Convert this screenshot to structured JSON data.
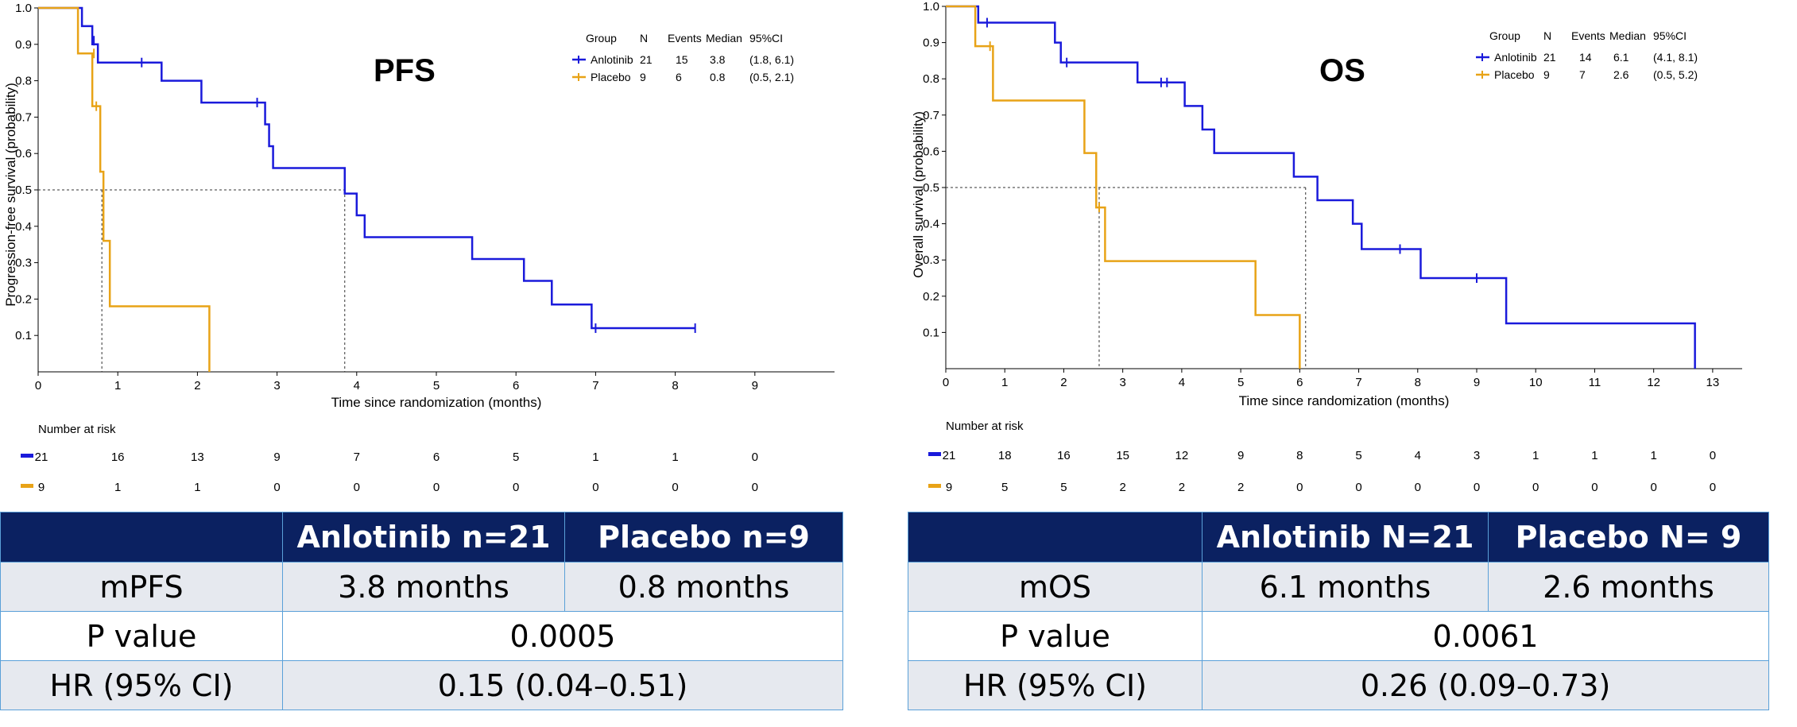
{
  "panels": [
    {
      "id": "pfs",
      "title": "PFS",
      "chart_data": {
        "type": "line",
        "title": "PFS",
        "xlabel": "Time since randomization (months)",
        "ylabel": "Progression-free survival (probability)",
        "xlim": [
          0,
          10
        ],
        "ylim": [
          0,
          1.0
        ],
        "x_ticks": [
          0,
          1,
          2,
          3,
          4,
          5,
          6,
          7,
          8,
          9
        ],
        "y_ticks": [
          0.1,
          0.2,
          0.3,
          0.4,
          0.5,
          0.6,
          0.7,
          0.8,
          0.9,
          1.0
        ],
        "grid": false,
        "legend": {
          "placement": "top-right",
          "headers": [
            "Group",
            "N",
            "Events",
            "Median",
            "95%CI"
          ],
          "rows": [
            {
              "group": "Anlotinib",
              "n": "21",
              "events": "15",
              "median": "3.8",
              "ci": "(1.8, 6.1)"
            },
            {
              "group": "Placebo",
              "n": "9",
              "events": "6",
              "median": "0.8",
              "ci": "(0.5, 2.1)"
            }
          ]
        },
        "series": [
          {
            "name": "Anlotinib",
            "color": "#1a1adb",
            "steps": [
              [
                0,
                1.0
              ],
              [
                0.55,
                0.95
              ],
              [
                0.68,
                0.9
              ],
              [
                0.75,
                0.85
              ],
              [
                1.55,
                0.8
              ],
              [
                2.05,
                0.74
              ],
              [
                2.85,
                0.68
              ],
              [
                2.9,
                0.62
              ],
              [
                2.95,
                0.56
              ],
              [
                3.85,
                0.49
              ],
              [
                4.0,
                0.43
              ],
              [
                4.1,
                0.37
              ],
              [
                5.45,
                0.31
              ],
              [
                6.1,
                0.25
              ],
              [
                6.45,
                0.185
              ],
              [
                6.95,
                0.12
              ],
              [
                8.25,
                0.12
              ]
            ],
            "censors": [
              [
                0.7,
                0.91
              ],
              [
                1.3,
                0.85
              ],
              [
                2.75,
                0.74
              ],
              [
                7.0,
                0.12
              ],
              [
                8.25,
                0.12
              ]
            ]
          },
          {
            "name": "Placebo",
            "color": "#e8a317",
            "steps": [
              [
                0,
                1.0
              ],
              [
                0.5,
                0.875
              ],
              [
                0.68,
                0.73
              ],
              [
                0.78,
                0.55
              ],
              [
                0.82,
                0.36
              ],
              [
                0.9,
                0.18
              ],
              [
                2.15,
                0.0
              ]
            ],
            "censors": [
              [
                0.7,
                0.875
              ],
              [
                0.73,
                0.73
              ]
            ]
          }
        ],
        "median_lines": [
          0.8,
          3.85
        ],
        "risk_table": {
          "title": "Number at risk",
          "rows": [
            {
              "name": "Anlotinib",
              "color": "#1a1adb",
              "values": [
                "21",
                "16",
                "13",
                "9",
                "7",
                "6",
                "5",
                "1",
                "1",
                "0"
              ]
            },
            {
              "name": "Placebo",
              "color": "#e8a317",
              "values": [
                "9",
                "1",
                "1",
                "0",
                "0",
                "0",
                "0",
                "0",
                "0",
                "0"
              ]
            }
          ]
        }
      },
      "table": {
        "header": [
          "",
          "Anlotinib n=21",
          "Placebo n=9"
        ],
        "row1": {
          "label": "mPFS",
          "a": "3.8 months",
          "b": "0.8 months"
        },
        "row2": {
          "label": "P value",
          "value": "0.0005"
        },
        "row3": {
          "label": "HR (95% CI)",
          "value": "0.15 (0.04–0.51)"
        }
      }
    },
    {
      "id": "os",
      "title": "OS",
      "chart_data": {
        "type": "line",
        "title": "OS",
        "xlabel": "Time since randomization (months)",
        "ylabel": "Overall survival (probability)",
        "xlim": [
          0,
          13.5
        ],
        "ylim": [
          0,
          1.0
        ],
        "x_ticks": [
          0,
          1,
          2,
          3,
          4,
          5,
          6,
          7,
          8,
          9,
          10,
          11,
          12,
          13
        ],
        "y_ticks": [
          0.1,
          0.2,
          0.3,
          0.4,
          0.5,
          0.6,
          0.7,
          0.8,
          0.9,
          1.0
        ],
        "grid": false,
        "legend": {
          "placement": "top-right",
          "headers": [
            "Group",
            "N",
            "Events",
            "Median",
            "95%CI"
          ],
          "rows": [
            {
              "group": "Anlotinib",
              "n": "21",
              "events": "14",
              "median": "6.1",
              "ci": "(4.1, 8.1)"
            },
            {
              "group": "Placebo",
              "n": "9",
              "events": "7",
              "median": "2.6",
              "ci": "(0.5, 5.2)"
            }
          ]
        },
        "series": [
          {
            "name": "Anlotinib",
            "color": "#1a1adb",
            "steps": [
              [
                0,
                1.0
              ],
              [
                0.55,
                0.955
              ],
              [
                1.85,
                0.9
              ],
              [
                1.95,
                0.845
              ],
              [
                3.25,
                0.79
              ],
              [
                4.05,
                0.725
              ],
              [
                4.35,
                0.66
              ],
              [
                4.55,
                0.595
              ],
              [
                5.9,
                0.53
              ],
              [
                6.3,
                0.465
              ],
              [
                6.9,
                0.4
              ],
              [
                7.05,
                0.33
              ],
              [
                8.05,
                0.25
              ],
              [
                9.5,
                0.125
              ],
              [
                12.7,
                0.0
              ]
            ],
            "censors": [
              [
                0.7,
                0.955
              ],
              [
                2.05,
                0.845
              ],
              [
                3.65,
                0.79
              ],
              [
                3.75,
                0.79
              ],
              [
                7.7,
                0.33
              ],
              [
                9.0,
                0.25
              ]
            ]
          },
          {
            "name": "Placebo",
            "color": "#e8a317",
            "steps": [
              [
                0,
                1.0
              ],
              [
                0.5,
                0.89
              ],
              [
                0.8,
                0.74
              ],
              [
                2.35,
                0.595
              ],
              [
                2.55,
                0.445
              ],
              [
                2.7,
                0.297
              ],
              [
                5.25,
                0.148
              ],
              [
                6.0,
                0.0
              ]
            ],
            "censors": [
              [
                0.75,
                0.89
              ],
              [
                2.6,
                0.445
              ]
            ]
          }
        ],
        "median_lines": [
          2.6,
          6.1
        ],
        "risk_table": {
          "title": "Number at risk",
          "rows": [
            {
              "name": "Anlotinib",
              "color": "#1a1adb",
              "values": [
                "21",
                "18",
                "16",
                "15",
                "12",
                "9",
                "8",
                "5",
                "4",
                "3",
                "1",
                "1",
                "1",
                "0"
              ]
            },
            {
              "name": "Placebo",
              "color": "#e8a317",
              "values": [
                "9",
                "5",
                "5",
                "2",
                "2",
                "2",
                "0",
                "0",
                "0",
                "0",
                "0",
                "0",
                "0",
                "0"
              ]
            }
          ]
        }
      },
      "table": {
        "header": [
          "",
          "Anlotinib N=21",
          "Placebo N= 9"
        ],
        "row1": {
          "label": "mOS",
          "a": "6.1 months",
          "b": "2.6 months"
        },
        "row2": {
          "label": "P value",
          "value": "0.0061"
        },
        "row3": {
          "label": "HR (95% CI)",
          "value": "0.26 (0.09–0.73)"
        }
      }
    }
  ]
}
